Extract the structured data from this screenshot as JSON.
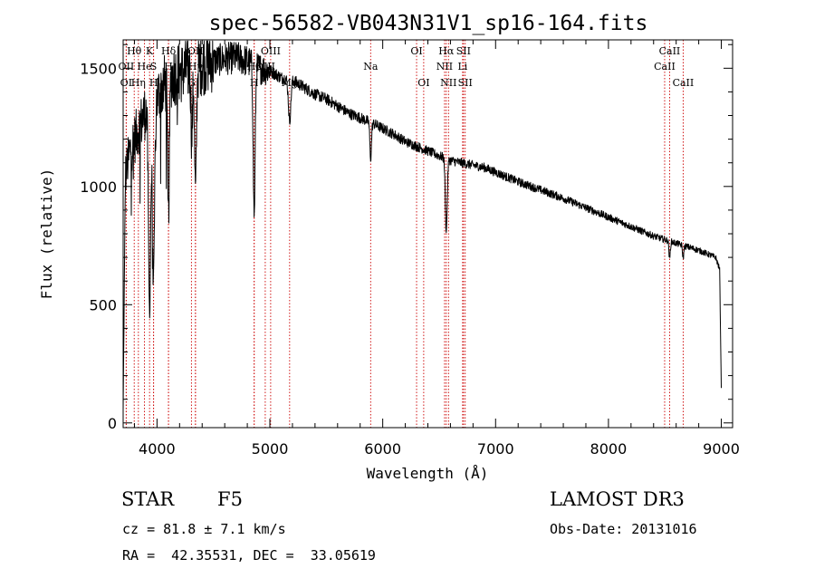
{
  "chart_data": {
    "type": "line",
    "title": "spec-56582-VB043N31V1_sp16-164.fits",
    "xlabel": "Wavelength (Å)",
    "ylabel": "Flux (relative)",
    "xlim": [
      3700,
      9100
    ],
    "ylim": [
      -20,
      1620
    ],
    "xticks": [
      4000,
      5000,
      6000,
      7000,
      8000,
      9000
    ],
    "yticks": [
      0,
      500,
      1000,
      1500
    ],
    "xminor_step": 200,
    "yminor_step": 100,
    "line_color": "#cc0000",
    "continuum": {
      "x": [
        3700,
        3720,
        3760,
        3800,
        3850,
        3900,
        3950,
        4000,
        4050,
        4100,
        4150,
        4200,
        4300,
        4400,
        4500,
        4600,
        4700,
        4800,
        4900,
        5000,
        5100,
        5200,
        5300,
        5400,
        5500,
        5600,
        5700,
        5800,
        5900,
        6000,
        6100,
        6200,
        6300,
        6400,
        6500,
        6600,
        6700,
        6800,
        6900,
        7000,
        7200,
        7400,
        7600,
        7800,
        8000,
        8200,
        8400,
        8600,
        8800,
        8950,
        8985,
        9000
      ],
      "y": [
        50,
        1050,
        1150,
        1200,
        1260,
        1320,
        1360,
        1380,
        1420,
        1460,
        1470,
        1480,
        1500,
        1520,
        1530,
        1540,
        1545,
        1530,
        1500,
        1490,
        1460,
        1450,
        1420,
        1390,
        1370,
        1340,
        1310,
        1290,
        1270,
        1245,
        1220,
        1190,
        1170,
        1150,
        1130,
        1110,
        1100,
        1090,
        1080,
        1060,
        1020,
        985,
        950,
        910,
        870,
        830,
        790,
        760,
        730,
        700,
        650,
        150
      ]
    },
    "absorption_features": [
      {
        "x": 3934,
        "depth": 0.65,
        "width": 14
      },
      {
        "x": 3969,
        "depth": 0.55,
        "width": 14
      },
      {
        "x": 4102,
        "depth": 0.35,
        "width": 12
      },
      {
        "x": 4308,
        "depth": 0.2,
        "width": 10
      },
      {
        "x": 4341,
        "depth": 0.35,
        "width": 12
      },
      {
        "x": 4861,
        "depth": 0.42,
        "width": 12
      },
      {
        "x": 5175,
        "depth": 0.12,
        "width": 15
      },
      {
        "x": 5893,
        "depth": 0.12,
        "width": 10
      },
      {
        "x": 6563,
        "depth": 0.27,
        "width": 12
      },
      {
        "x": 8542,
        "depth": 0.1,
        "width": 8
      },
      {
        "x": 8662,
        "depth": 0.07,
        "width": 8
      }
    ],
    "lines": [
      {
        "label": "Hθ",
        "x": 3798,
        "row": 0
      },
      {
        "label": "K",
        "x": 3934,
        "row": 0
      },
      {
        "label": "Hδ",
        "x": 4102,
        "row": 0
      },
      {
        "label": "OII",
        "x": 4340,
        "row": 0
      },
      {
        "label": "OIII",
        "x": 5007,
        "row": 0
      },
      {
        "label": "OI",
        "x": 6300,
        "row": 0
      },
      {
        "label": "Hα",
        "x": 6563,
        "row": 0
      },
      {
        "label": "SII",
        "x": 6716,
        "row": 0
      },
      {
        "label": "CaII",
        "x": 8542,
        "row": 0
      },
      {
        "label": "OII",
        "x": 3727,
        "row": 1
      },
      {
        "label": "He",
        "x": 3889,
        "row": 1
      },
      {
        "label": "S",
        "x": 3969,
        "row": 1
      },
      {
        "label": "H",
        "x": 4102,
        "row": 1
      },
      {
        "label": "Hγ",
        "x": 4341,
        "row": 1
      },
      {
        "label": "Hβ",
        "x": 4861,
        "row": 1
      },
      {
        "label": "OIII",
        "x": 4959,
        "row": 1
      },
      {
        "label": "Na",
        "x": 5893,
        "row": 1
      },
      {
        "label": "NII",
        "x": 6548,
        "row": 1
      },
      {
        "label": "Li",
        "x": 6708,
        "row": 1
      },
      {
        "label": "CaII",
        "x": 8498,
        "row": 1
      },
      {
        "label": "OI",
        "x": 3727,
        "row": 2
      },
      {
        "label": "Hη",
        "x": 3835,
        "row": 2
      },
      {
        "label": "H",
        "x": 3970,
        "row": 2
      },
      {
        "label": "G",
        "x": 4305,
        "row": 2
      },
      {
        "label": "H",
        "x": 4861,
        "row": 2
      },
      {
        "label": "Mg",
        "x": 5175,
        "row": 2
      },
      {
        "label": "OI",
        "x": 6363,
        "row": 2
      },
      {
        "label": "NII",
        "x": 6583,
        "row": 2
      },
      {
        "label": "SII",
        "x": 6731,
        "row": 2
      },
      {
        "label": "CaII",
        "x": 8662,
        "row": 2
      }
    ]
  },
  "info": {
    "object_class": "STAR",
    "subclass": "F5",
    "survey": "LAMOST DR3",
    "redshift_text": "cz = 81.8 ± 7.1 km/s",
    "obs_date_text": "Obs-Date: 20131016",
    "coords_text": "RA =  42.35531, DEC =  33.05619"
  }
}
